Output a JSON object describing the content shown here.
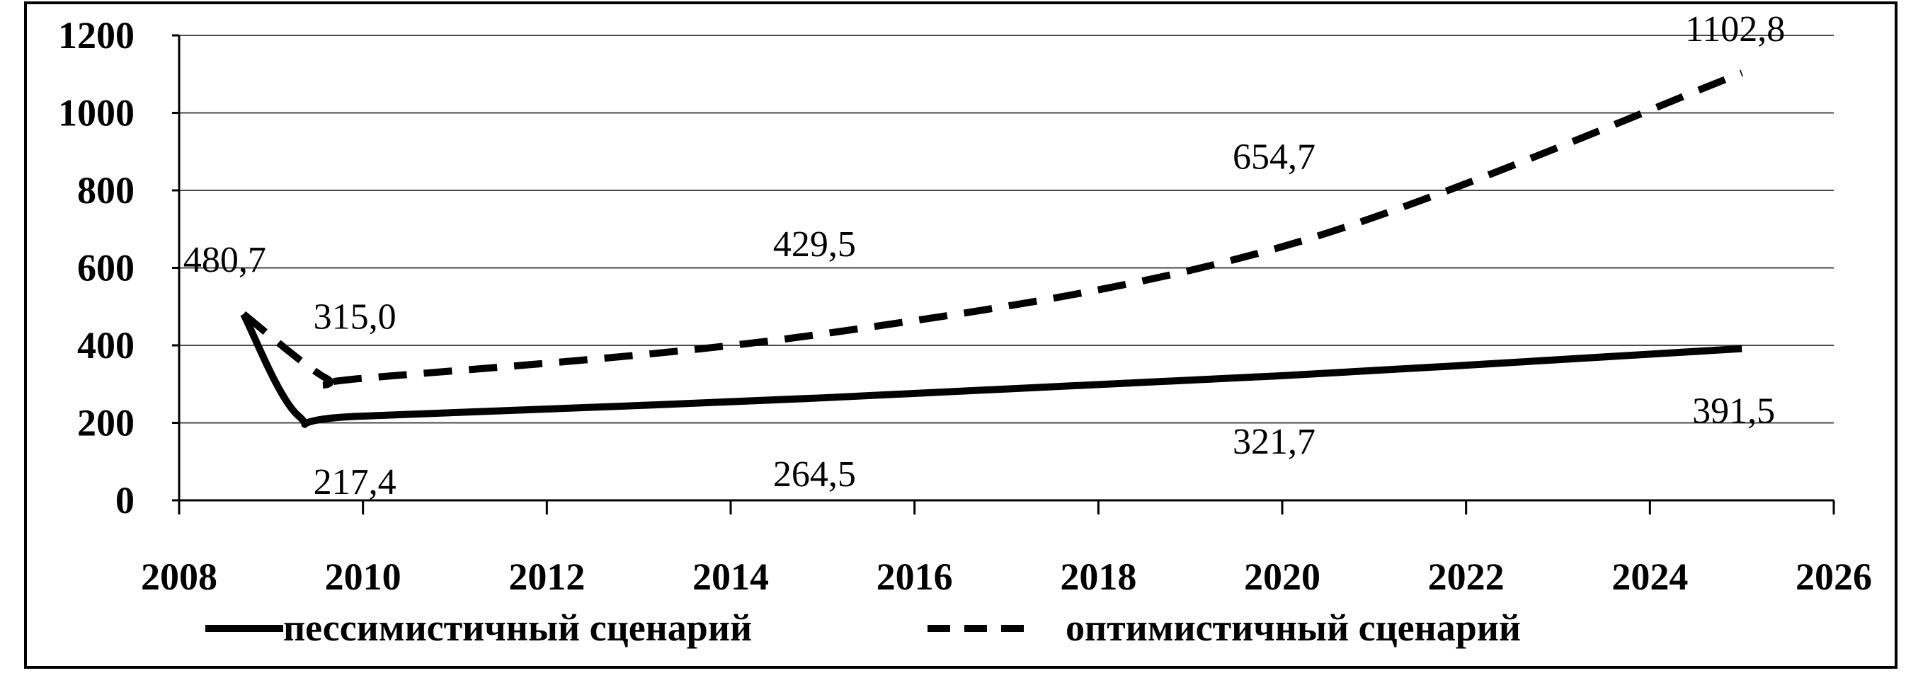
{
  "chart_data": {
    "type": "line",
    "xlim": [
      2008,
      2026
    ],
    "ylim": [
      0,
      1200
    ],
    "x_ticks": [
      "2008",
      "2010",
      "2012",
      "2014",
      "2016",
      "2018",
      "2020",
      "2022",
      "2024",
      "2026"
    ],
    "y_ticks": [
      "0",
      "200",
      "400",
      "600",
      "800",
      "1000",
      "1200"
    ],
    "grid": true,
    "legend_position": "bottom",
    "series": [
      {
        "name": "пессимистичный сценарий",
        "style": "solid",
        "color": "#000000",
        "points": [
          [
            2008.7,
            480.7
          ],
          [
            2009.3,
            217.4
          ],
          [
            2010,
            217.4
          ],
          [
            2015,
            264.5
          ],
          [
            2020,
            321.7
          ],
          [
            2025,
            391.5
          ]
        ],
        "labels": [
          {
            "x": 2010,
            "text": "217,4"
          },
          {
            "x": 2015,
            "text": "264,5"
          },
          {
            "x": 2020,
            "text": "321,7"
          },
          {
            "x": 2025,
            "text": "391,5"
          }
        ]
      },
      {
        "name": "оптимистичный сценарий",
        "style": "dashed",
        "color": "#000000",
        "points": [
          [
            2008.7,
            480.7
          ],
          [
            2009.6,
            315.0
          ],
          [
            2010,
            315.0
          ],
          [
            2015,
            429.5
          ],
          [
            2020,
            654.7
          ],
          [
            2025,
            1102.8
          ]
        ],
        "labels": [
          {
            "x": 2008.7,
            "text": "480,7"
          },
          {
            "x": 2010,
            "text": "315,0"
          },
          {
            "x": 2015,
            "text": "429,5"
          },
          {
            "x": 2020,
            "text": "654,7"
          },
          {
            "x": 2025,
            "text": "1102,8"
          }
        ]
      }
    ]
  }
}
